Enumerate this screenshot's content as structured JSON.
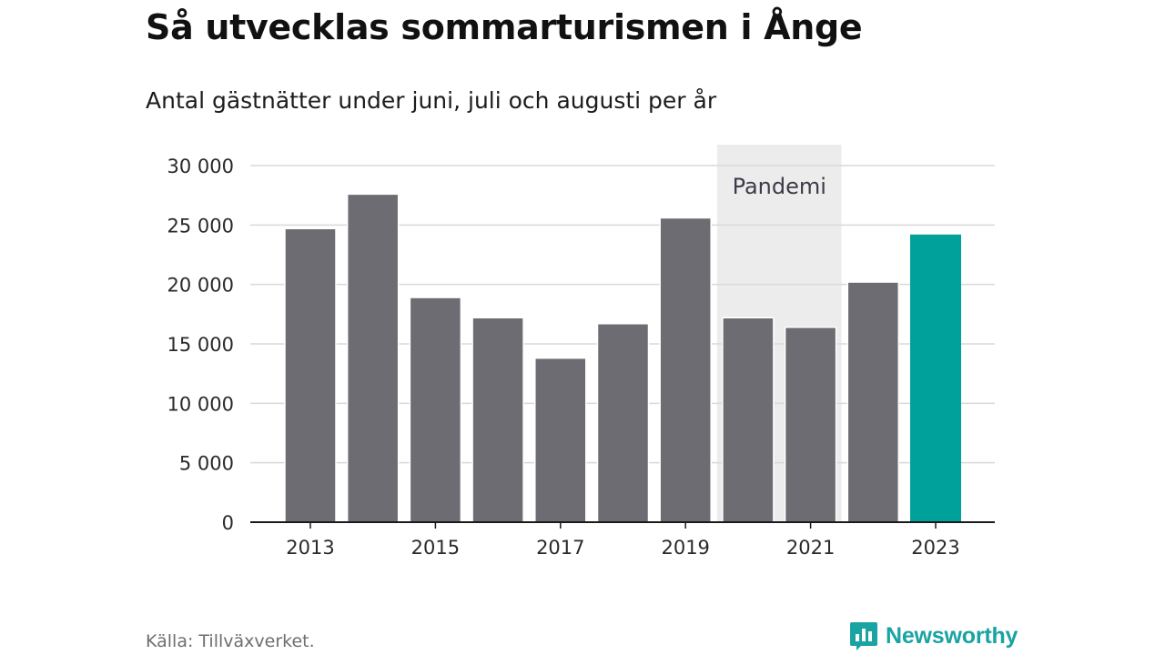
{
  "title": "Så utvecklas sommarturismen i Ånge",
  "subtitle": "Antal gästnätter under juni, juli och augusti per år",
  "source": "Källa: Tillväxverket.",
  "brand": "Newsworthy",
  "colors": {
    "bar": "#6d6c72",
    "highlight": "#00a19a",
    "grid": "#d9d9d9",
    "band": "#ececec",
    "axis": "#1a1a1a",
    "brand": "#1aa3a3"
  },
  "chart_data": {
    "type": "bar",
    "categories": [
      "2013",
      "2014",
      "2015",
      "2016",
      "2017",
      "2018",
      "2019",
      "2020",
      "2021",
      "2022",
      "2023"
    ],
    "values": [
      24700,
      27600,
      18900,
      17200,
      13800,
      16700,
      25600,
      17200,
      16400,
      20200,
      24200
    ],
    "highlight_category": "2023",
    "x_tick_labels": [
      "2013",
      "2015",
      "2017",
      "2019",
      "2021",
      "2023"
    ],
    "y_ticks": [
      0,
      5000,
      10000,
      15000,
      20000,
      25000,
      30000
    ],
    "y_tick_labels": [
      "0",
      "5 000",
      "10 000",
      "15 000",
      "20 000",
      "25 000",
      "30 000"
    ],
    "ylim": [
      0,
      30000
    ],
    "grid": true,
    "annotation": {
      "label": "Pandemi",
      "from": "2020",
      "to": "2021"
    }
  }
}
